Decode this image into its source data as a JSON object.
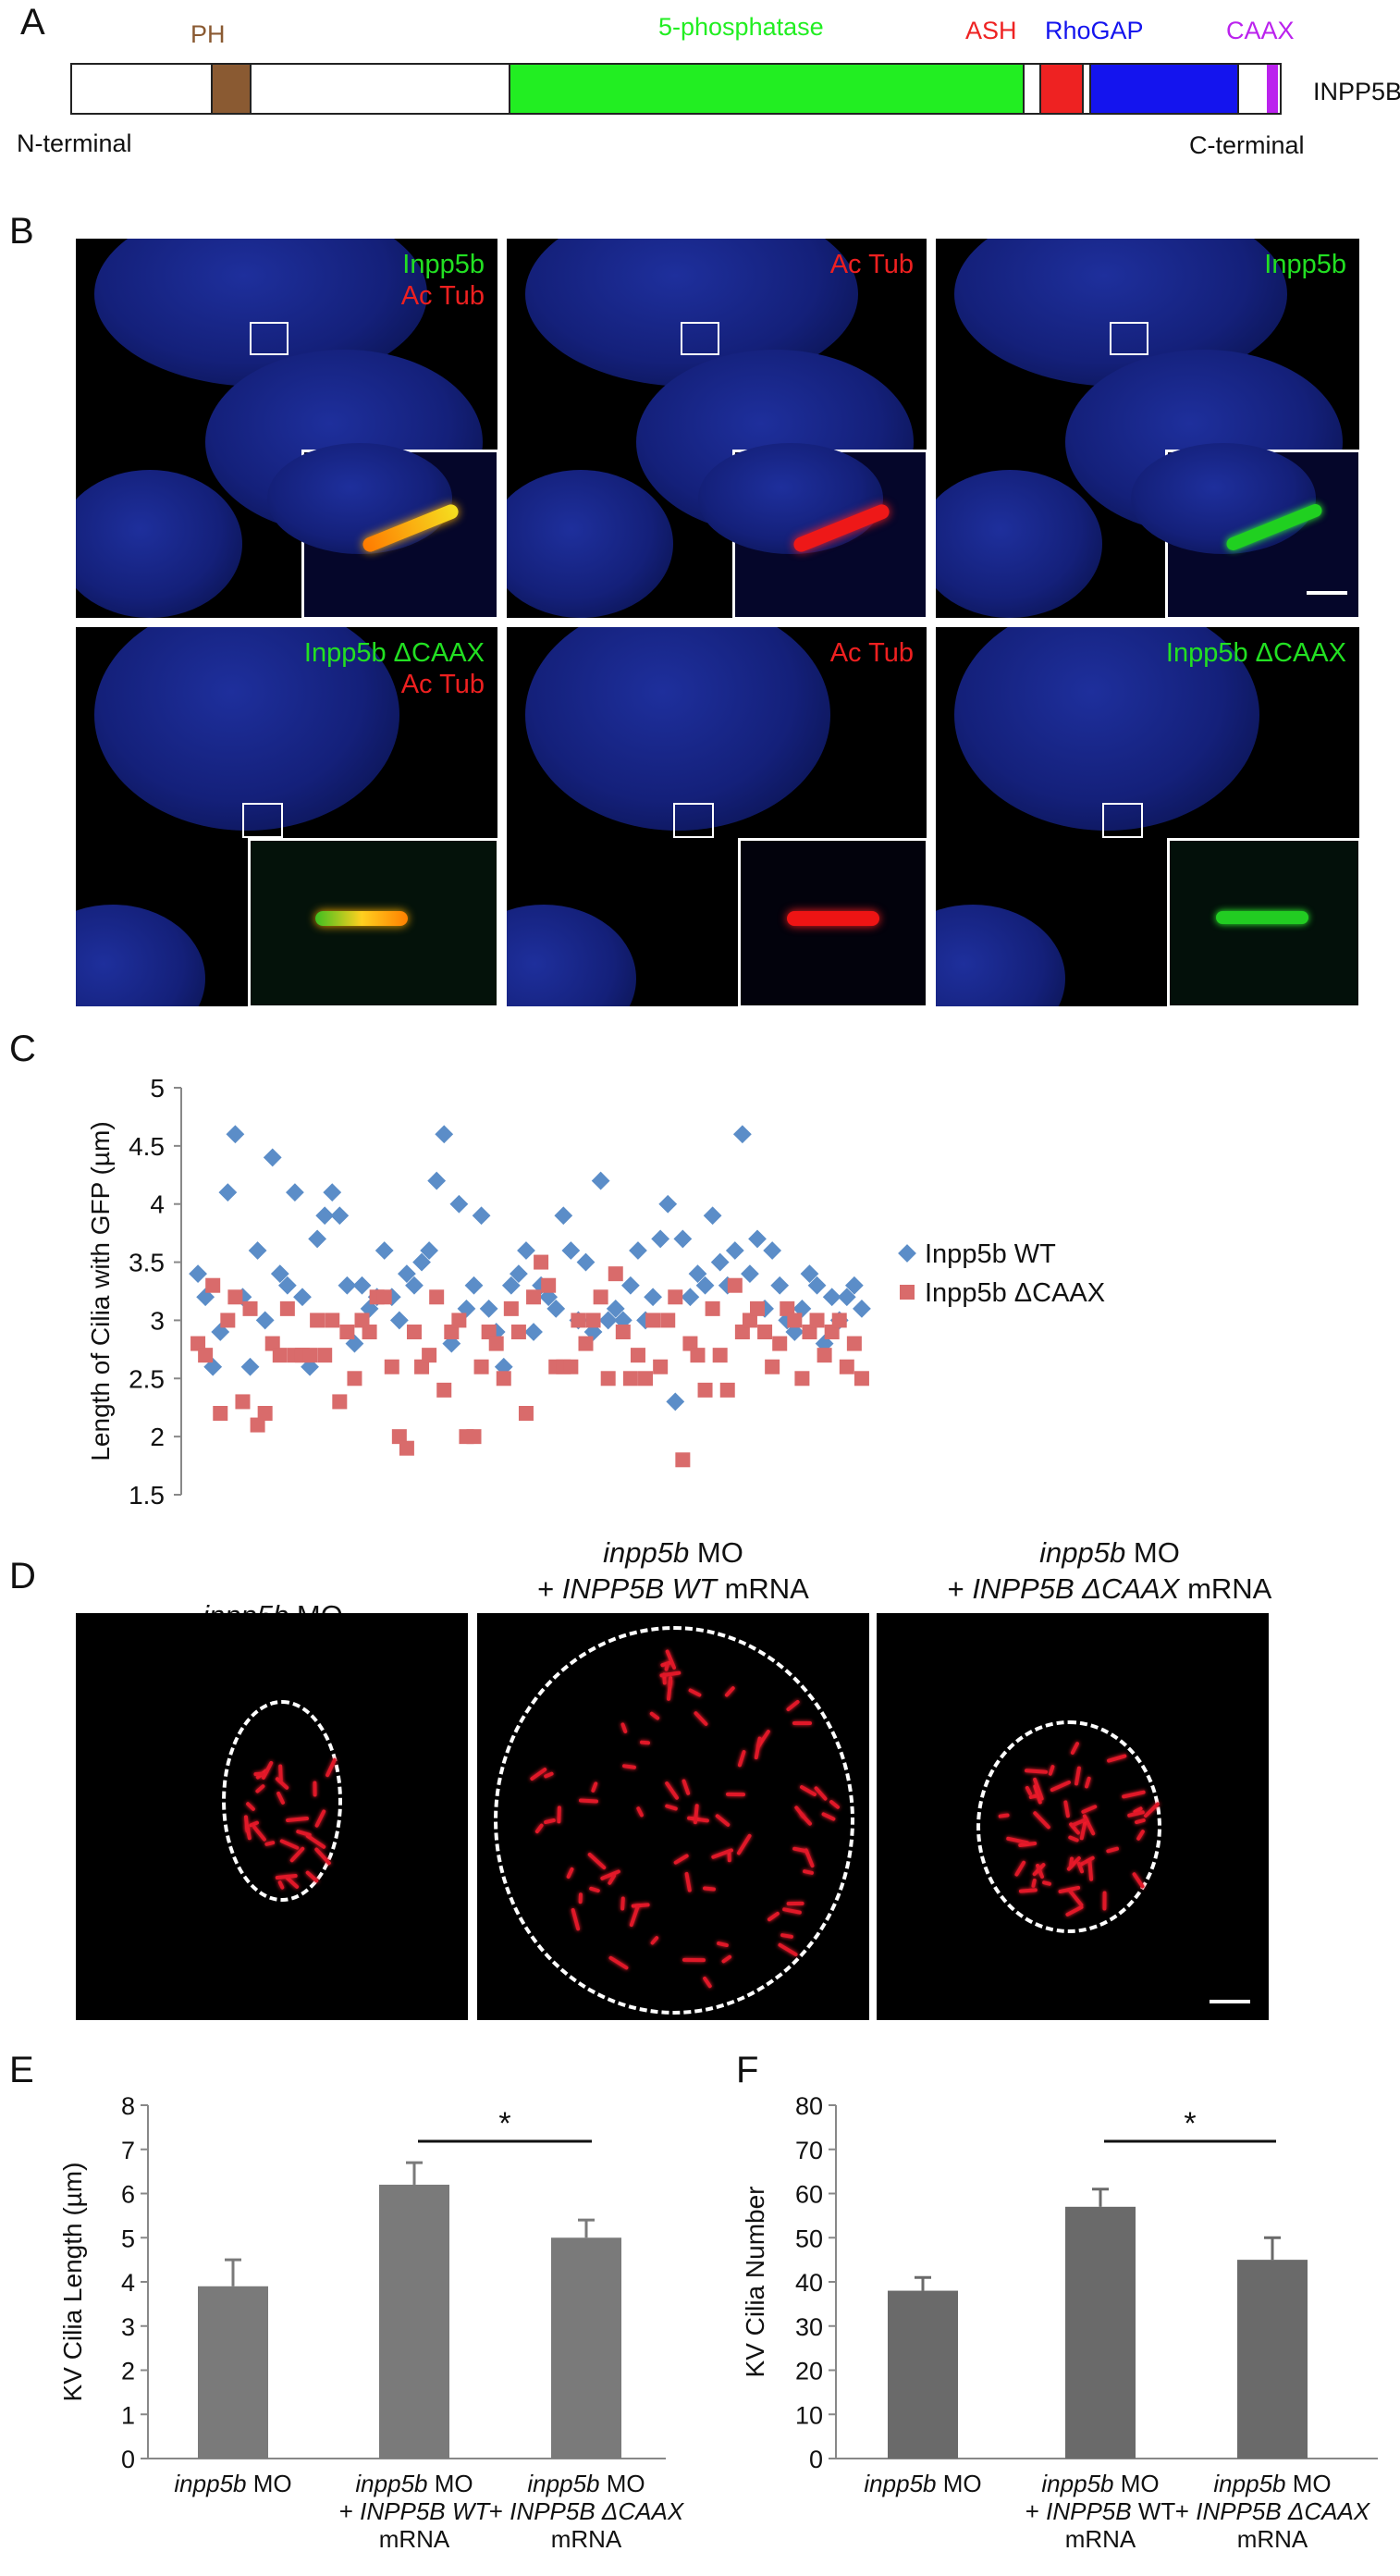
{
  "panels": {
    "a": "A",
    "b": "B",
    "c": "C",
    "d": "D",
    "e": "E",
    "f": "F"
  },
  "panel_a": {
    "domains": [
      {
        "name": "PH",
        "color": "#8a5a32"
      },
      {
        "name": "5-phosphatase",
        "color": "#22ee22"
      },
      {
        "name": "ASH",
        "color": "#ee2222"
      },
      {
        "name": "RhoGAP",
        "color": "#1414ee"
      },
      {
        "name": "CAAX",
        "color": "#bb22ee"
      }
    ],
    "protein": "INPP5B",
    "n_terminal": "N-terminal",
    "c_terminal": "C-terminal"
  },
  "panel_b": {
    "row1": {
      "merge_green": "Inpp5b",
      "merge_red": "Ac Tub",
      "red_only": "Ac Tub",
      "green_only": "Inpp5b"
    },
    "row2": {
      "merge_green": "Inpp5b ΔCAAX",
      "merge_red": "Ac Tub",
      "red_only": "Ac Tub",
      "green_only": "Inpp5b ΔCAAX"
    },
    "colors": {
      "green": "#22e022",
      "red": "#ee2020"
    }
  },
  "panel_d": {
    "labels": [
      {
        "line1_italic": "inpp5b",
        "line1_rest": " MO",
        "line2_prefix": "",
        "line2_italic": "",
        "line2_rest": ""
      },
      {
        "line1_italic": "inpp5b",
        "line1_rest": " MO",
        "line2_prefix": "+ ",
        "line2_italic": "INPP5B WT",
        "line2_rest": " mRNA"
      },
      {
        "line1_italic": "inpp5b",
        "line1_rest": " MO",
        "line2_prefix": "+ ",
        "line2_italic": "INPP5B ΔCAAX",
        "line2_rest": " mRNA"
      }
    ]
  },
  "chart_data": [
    {
      "panel": "C",
      "type": "scatter",
      "ylabel": "Length of Cilia with GFP (µm)",
      "ylim": [
        1.5,
        5
      ],
      "yticks": [
        "5",
        "4.5",
        "4",
        "3.5",
        "3",
        "2.5",
        "2",
        "1.5"
      ],
      "series": [
        {
          "name": "Inpp5b WT",
          "color": "#5b8dc8",
          "marker": "diamond",
          "x": [
            1,
            2,
            3,
            4,
            5,
            6,
            7,
            8,
            9,
            10,
            11,
            12,
            13,
            14,
            15,
            16,
            17,
            18,
            19,
            20,
            21,
            22,
            23,
            24,
            25,
            26,
            27,
            28,
            29,
            30,
            31,
            32,
            33,
            34,
            35,
            36,
            37,
            38,
            39,
            40,
            41,
            42,
            43,
            44,
            45,
            46,
            47,
            48,
            49,
            50,
            51,
            52,
            53,
            54,
            55,
            56,
            57,
            58,
            59,
            60,
            61,
            62,
            63,
            64,
            65,
            66,
            67,
            68,
            69,
            70,
            71,
            72,
            73,
            74,
            75,
            76,
            77,
            78,
            79,
            80,
            81,
            82,
            83,
            84,
            85,
            86,
            87,
            88,
            89,
            90
          ],
          "y": [
            3.4,
            3.2,
            2.6,
            2.9,
            4.1,
            4.6,
            3.2,
            2.6,
            3.6,
            3.0,
            4.4,
            3.4,
            3.3,
            4.1,
            3.2,
            2.6,
            3.7,
            3.9,
            4.1,
            3.9,
            3.3,
            2.8,
            3.3,
            3.1,
            3.2,
            3.6,
            3.2,
            3.0,
            3.4,
            3.3,
            3.5,
            3.6,
            4.2,
            4.6,
            2.8,
            4.0,
            3.1,
            3.3,
            3.9,
            3.1,
            2.9,
            2.6,
            3.3,
            3.4,
            3.6,
            2.9,
            3.3,
            3.2,
            3.1,
            3.9,
            3.6,
            3.0,
            3.5,
            2.9,
            4.2,
            3.0,
            3.1,
            3.0,
            3.3,
            3.6,
            3.0,
            3.2,
            3.7,
            4.0,
            2.3,
            3.7,
            3.2,
            3.4,
            3.3,
            3.9,
            3.5,
            3.3,
            3.6,
            4.6,
            3.4,
            3.7,
            3.1,
            3.6,
            3.3,
            3.0,
            2.9,
            3.1,
            3.4,
            3.3,
            2.8,
            3.2,
            3.0,
            3.2,
            3.3,
            3.1
          ]
        },
        {
          "name": "Inpp5b ΔCAAX",
          "color": "#d96b6b",
          "marker": "square",
          "x": [
            1,
            2,
            3,
            4,
            5,
            6,
            7,
            8,
            9,
            10,
            11,
            12,
            13,
            14,
            15,
            16,
            17,
            18,
            19,
            20,
            21,
            22,
            23,
            24,
            25,
            26,
            27,
            28,
            29,
            30,
            31,
            32,
            33,
            34,
            35,
            36,
            37,
            38,
            39,
            40,
            41,
            42,
            43,
            44,
            45,
            46,
            47,
            48,
            49,
            50,
            51,
            52,
            53,
            54,
            55,
            56,
            57,
            58,
            59,
            60,
            61,
            62,
            63,
            64,
            65,
            66,
            67,
            68,
            69,
            70,
            71,
            72,
            73,
            74,
            75,
            76,
            77,
            78,
            79,
            80,
            81,
            82,
            83,
            84,
            85,
            86,
            87,
            88,
            89,
            90
          ],
          "y": [
            2.8,
            2.7,
            3.3,
            2.2,
            3.0,
            3.2,
            2.3,
            3.1,
            2.1,
            2.2,
            2.8,
            2.7,
            3.1,
            2.7,
            2.7,
            2.7,
            3.0,
            2.7,
            3.0,
            2.3,
            2.9,
            2.5,
            3.0,
            2.9,
            3.2,
            3.2,
            2.6,
            2.0,
            1.9,
            2.9,
            2.6,
            2.7,
            3.2,
            2.4,
            2.9,
            3.0,
            2.0,
            2.0,
            2.6,
            2.9,
            2.8,
            2.5,
            3.1,
            2.9,
            2.2,
            3.2,
            3.5,
            3.3,
            2.6,
            2.6,
            2.6,
            3.0,
            2.8,
            3.0,
            3.2,
            2.5,
            3.4,
            2.9,
            2.5,
            2.7,
            2.5,
            3.0,
            2.6,
            3.0,
            3.2,
            1.8,
            2.8,
            2.7,
            2.4,
            3.1,
            2.7,
            2.4,
            3.3,
            2.9,
            3.0,
            3.1,
            2.9,
            2.6,
            2.8,
            3.1,
            3.0,
            2.5,
            2.9,
            3.0,
            2.7,
            2.9,
            3.0,
            2.6,
            2.8,
            2.5
          ]
        }
      ],
      "legend_position": "right"
    },
    {
      "panel": "E",
      "type": "bar",
      "ylabel": "KV Cilia Length (µm)",
      "ylim": [
        0,
        8
      ],
      "yticks": [
        "0",
        "1",
        "2",
        "3",
        "4",
        "5",
        "6",
        "7",
        "8"
      ],
      "values": [
        3.9,
        6.2,
        5.0
      ],
      "errors": [
        0.6,
        0.5,
        0.4
      ],
      "color": "#7a7a7a",
      "significance": "*",
      "categories": [
        {
          "l1_italic": "inpp5b",
          "l1_rest": " MO",
          "l2_prefix": "",
          "l2_italic": "",
          "l2_rest": "",
          "l3": ""
        },
        {
          "l1_italic": "inpp5b",
          "l1_rest": " MO",
          "l2_prefix": "+ ",
          "l2_italic": "INPP5B WT",
          "l2_rest": "",
          "l3": "mRNA"
        },
        {
          "l1_italic": "inpp5b",
          "l1_rest": " MO",
          "l2_prefix": "+ ",
          "l2_italic": "INPP5B ΔCAAX",
          "l2_rest": "",
          "l3": "mRNA"
        }
      ]
    },
    {
      "panel": "F",
      "type": "bar",
      "ylabel": "KV Cilia Number",
      "ylim": [
        0,
        80
      ],
      "yticks": [
        "0",
        "10",
        "20",
        "30",
        "40",
        "50",
        "60",
        "70",
        "80"
      ],
      "values": [
        38,
        57,
        45
      ],
      "errors": [
        3,
        4,
        5
      ],
      "color": "#6a6a6a",
      "significance": "*",
      "categories": [
        {
          "l1_italic": "inpp5b",
          "l1_rest": " MO",
          "l2_prefix": "",
          "l2_italic": "",
          "l2_rest": "",
          "l3": ""
        },
        {
          "l1_italic": "inpp5b",
          "l1_rest": " MO",
          "l2_prefix": "+ ",
          "l2_italic": "INPP5B",
          "l2_rest": " WT",
          "l3": "mRNA"
        },
        {
          "l1_italic": "inpp5b",
          "l1_rest": " MO",
          "l2_prefix": "+ ",
          "l2_italic": "INPP5B ΔCAAX",
          "l2_rest": "",
          "l3": "mRNA"
        }
      ]
    }
  ]
}
